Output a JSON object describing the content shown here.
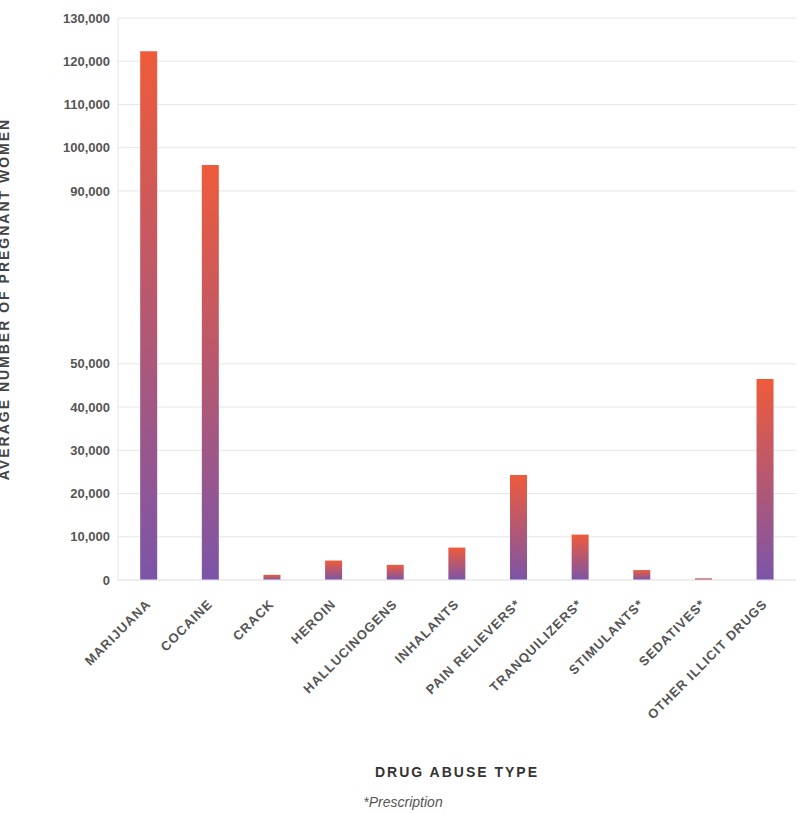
{
  "chart_data": {
    "type": "bar",
    "categories": [
      "MARIJUANA",
      "COCAINE",
      "CRACK",
      "HEROIN",
      "HALLUCINOGENS",
      "INHALANTS",
      "PAIN RELIEVERS*",
      "TRANQUILIZERS*",
      "STIMULANTS*",
      "SEDATIVES*",
      "OTHER ILLICIT DRUGS"
    ],
    "values": [
      122300,
      96000,
      1200,
      4500,
      3500,
      7500,
      24300,
      10500,
      2300,
      400,
      46500
    ],
    "color": "#ef5b3a",
    "x_label": "DRUG ABUSE TYPE",
    "y_label": "AVERAGE NUMBER OF PREGNANT WOMEN",
    "footnote": "*Prescription",
    "ylim": [
      0,
      130000
    ],
    "yticks": [
      0,
      {
        "value": 10000,
        "label": "10,000"
      },
      {
        "value": 20000,
        "label": "20,000"
      },
      {
        "value": 30000,
        "label": "30,000"
      },
      {
        "value": 40000,
        "label": "40,000"
      },
      {
        "value": 50000,
        "label": "50,000"
      },
      {
        "value": 90000,
        "label": "90,000"
      },
      {
        "value": 100000,
        "label": "100,000"
      },
      {
        "value": 110000,
        "label": "110,000"
      },
      {
        "value": 120000,
        "label": "120,000"
      },
      {
        "value": 130000,
        "label": "130,000"
      }
    ],
    "grid": true
  }
}
